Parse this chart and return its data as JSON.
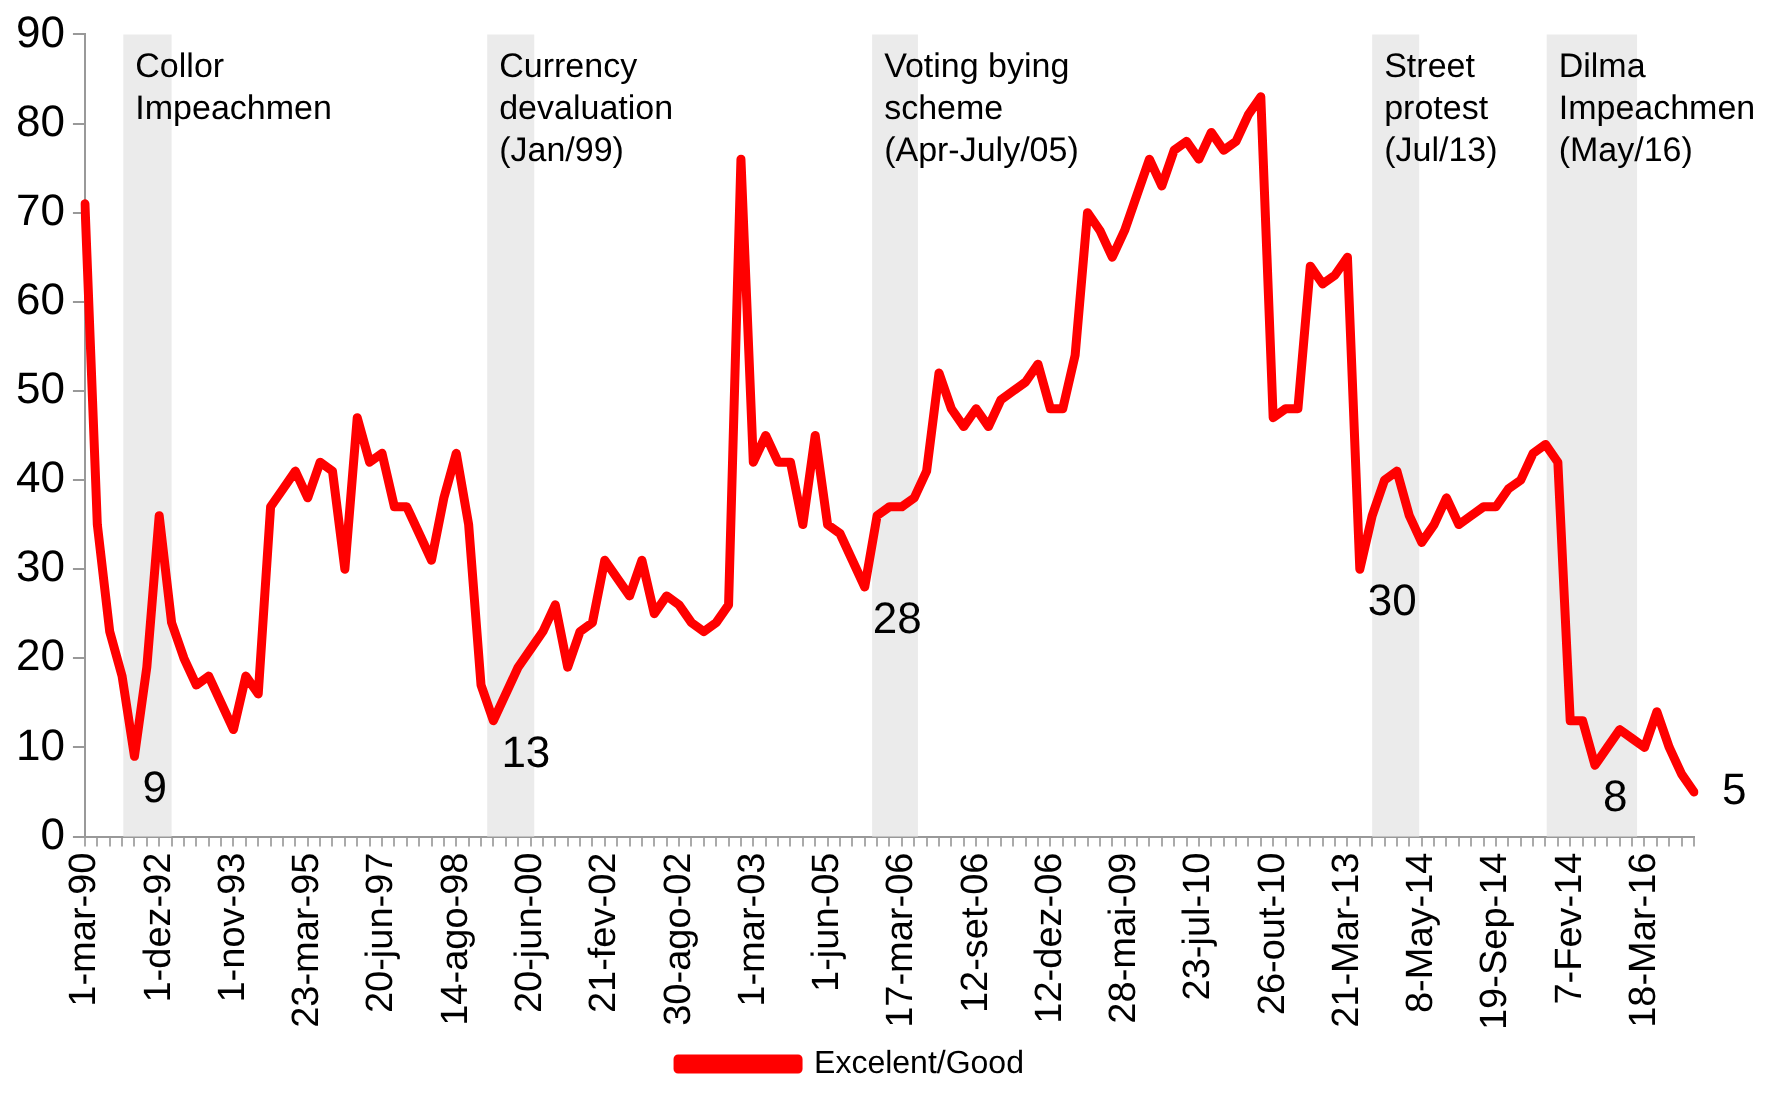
{
  "chart_data": {
    "type": "line",
    "categories": [
      "1-mar-90",
      null,
      null,
      null,
      null,
      null,
      "1-dez-92",
      null,
      null,
      null,
      null,
      null,
      "1-nov-93",
      null,
      null,
      null,
      null,
      null,
      "23-mar-95",
      null,
      null,
      null,
      null,
      null,
      "20-jun-97",
      null,
      null,
      null,
      null,
      null,
      "14-ago-98",
      null,
      null,
      null,
      null,
      null,
      "20-jun-00",
      null,
      null,
      null,
      null,
      null,
      "21-fev-02",
      null,
      null,
      null,
      null,
      null,
      "30-ago-02",
      null,
      null,
      null,
      null,
      null,
      "1-mar-03",
      null,
      null,
      null,
      null,
      null,
      "1-jun-05",
      null,
      null,
      null,
      null,
      null,
      "17-mar-06",
      null,
      null,
      null,
      null,
      null,
      "12-set-06",
      null,
      null,
      null,
      null,
      null,
      "12-dez-06",
      null,
      null,
      null,
      null,
      null,
      "28-mai-09",
      null,
      null,
      null,
      null,
      null,
      "23-jul-10",
      null,
      null,
      null,
      null,
      null,
      "26-out-10",
      null,
      null,
      null,
      null,
      null,
      "21-Mar-13",
      null,
      null,
      null,
      null,
      null,
      "8-May-14",
      null,
      null,
      null,
      null,
      null,
      "19-Sep-14",
      null,
      null,
      null,
      null,
      null,
      "7-Fev-14",
      null,
      null,
      null,
      null,
      null,
      "18-Mar-16",
      null,
      null,
      null,
      null
    ],
    "series": [
      {
        "name": "Excelent/Good",
        "color": "#ff0000",
        "values": [
          71,
          35,
          23,
          18,
          9,
          19,
          36,
          24,
          20,
          17,
          18,
          15,
          12,
          18,
          16,
          37,
          39,
          41,
          38,
          42,
          41,
          30,
          47,
          42,
          43,
          37,
          37,
          34,
          31,
          38,
          43,
          35,
          17,
          13,
          16,
          19,
          21,
          23,
          26,
          19,
          23,
          24,
          31,
          29,
          27,
          31,
          25,
          27,
          26,
          24,
          23,
          24,
          26,
          76,
          42,
          45,
          42,
          42,
          35,
          45,
          35,
          34,
          31,
          28,
          36,
          37,
          37,
          38,
          41,
          52,
          48,
          46,
          48,
          46,
          49,
          50,
          51,
          53,
          48,
          48,
          54,
          70,
          68,
          65,
          68,
          72,
          76,
          73,
          77,
          78,
          76,
          79,
          77,
          78,
          81,
          83,
          47,
          48,
          48,
          64,
          62,
          63,
          65,
          30,
          36,
          40,
          41,
          36,
          33,
          35,
          38,
          35,
          36,
          37,
          37,
          39,
          40,
          43,
          44,
          42,
          13,
          13,
          8,
          10,
          12,
          11,
          10,
          14,
          10,
          7,
          5
        ],
        "value_labels": [
          null,
          null,
          null,
          null,
          "9",
          null,
          null,
          null,
          null,
          null,
          null,
          null,
          null,
          null,
          null,
          null,
          null,
          null,
          null,
          null,
          null,
          null,
          null,
          null,
          null,
          null,
          null,
          null,
          null,
          null,
          null,
          null,
          null,
          "13",
          null,
          null,
          null,
          null,
          null,
          null,
          null,
          null,
          null,
          null,
          null,
          null,
          null,
          null,
          null,
          null,
          null,
          null,
          null,
          null,
          null,
          null,
          null,
          null,
          null,
          null,
          null,
          null,
          null,
          "28",
          null,
          null,
          null,
          null,
          null,
          null,
          null,
          null,
          null,
          null,
          null,
          null,
          null,
          null,
          null,
          null,
          null,
          null,
          null,
          null,
          null,
          null,
          null,
          null,
          null,
          null,
          null,
          null,
          null,
          null,
          null,
          null,
          null,
          null,
          null,
          null,
          null,
          null,
          null,
          "30",
          null,
          null,
          null,
          null,
          null,
          null,
          null,
          null,
          null,
          null,
          null,
          null,
          null,
          null,
          null,
          null,
          null,
          null,
          "8",
          null,
          null,
          null,
          null,
          null,
          null,
          null,
          "5"
        ]
      }
    ],
    "ylim": [
      0,
      90
    ],
    "yticks": [
      0,
      10,
      20,
      30,
      40,
      50,
      60,
      70,
      80,
      90
    ],
    "annotations": [
      "Collor\nImpeachmen",
      "Currency\ndevaluation\n(Jan/99)",
      "Voting bying\nscheme\n(Apr-July/05)",
      "Street\nprotest\n(Jul/13)",
      "Dilma\nImpeachmen\n(May/16)"
    ],
    "legend": "bottom",
    "marker": "none",
    "line_style": "solid"
  }
}
